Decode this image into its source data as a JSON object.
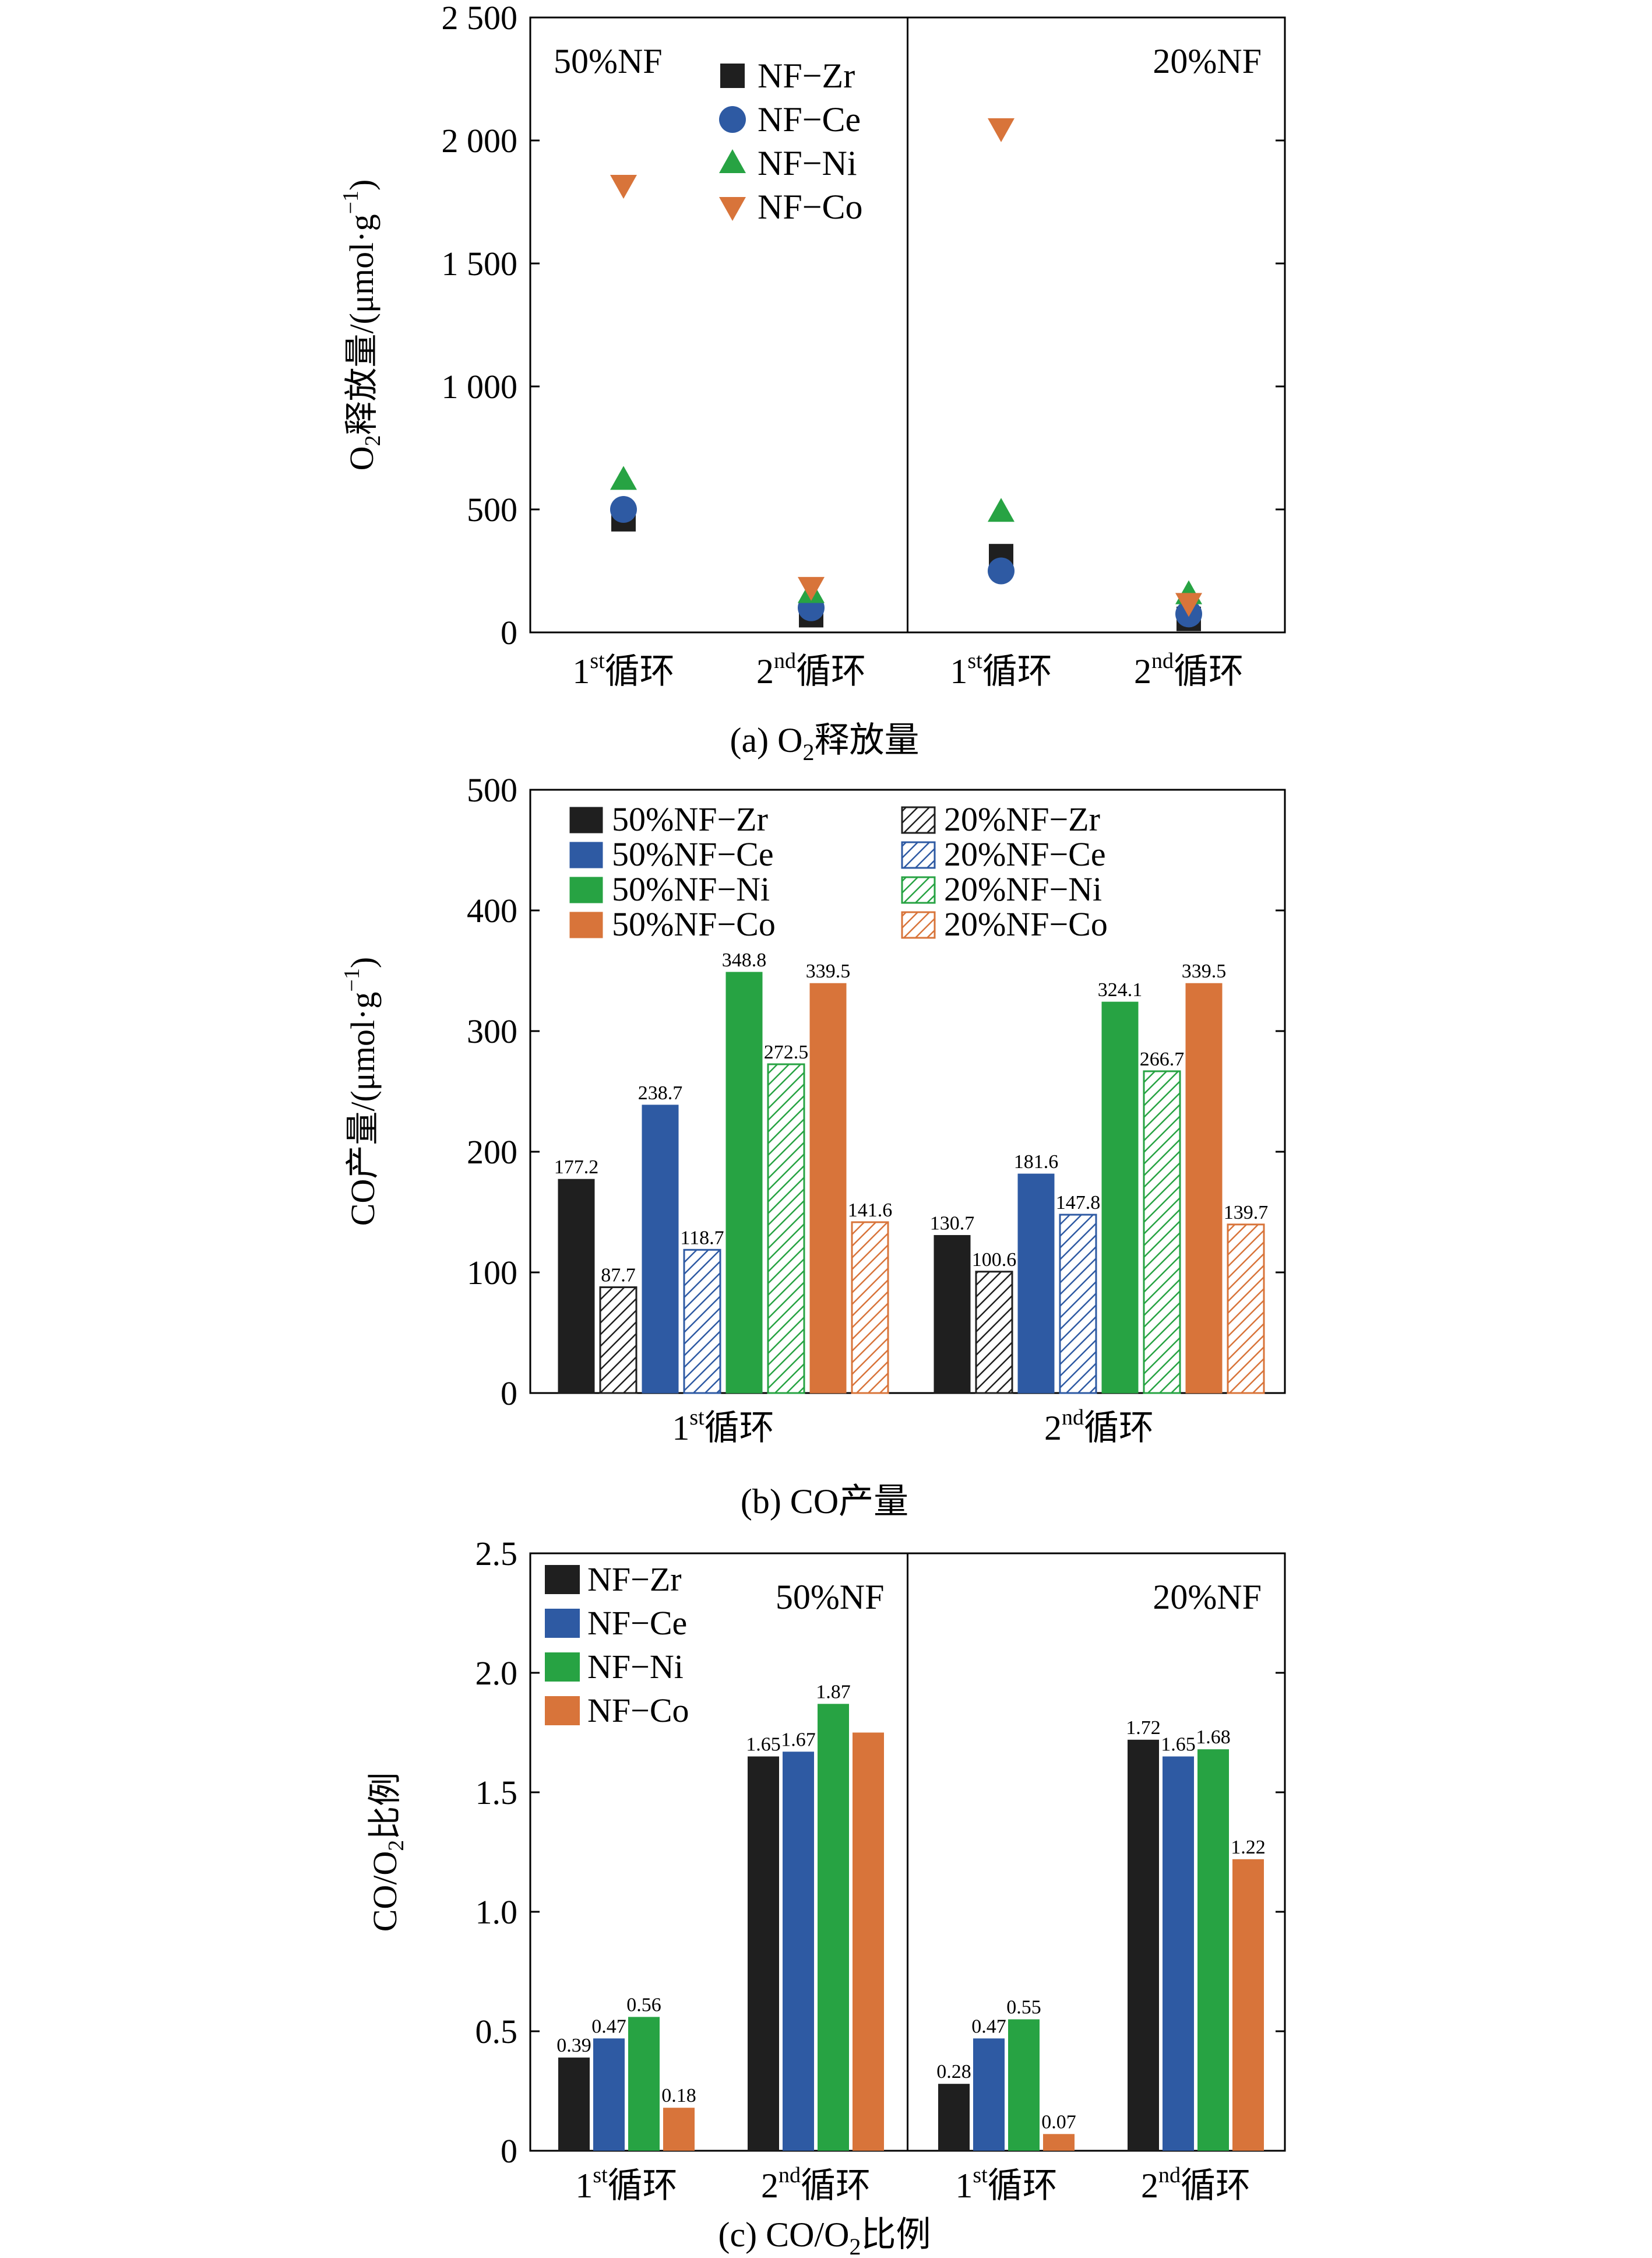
{
  "colors": {
    "zr": "#1f1f1f",
    "ce": "#2e5aa3",
    "ni": "#27a343",
    "co": "#d8743a",
    "axis": "#000000"
  },
  "chart_data": [
    {
      "id": "a",
      "type": "scatter",
      "caption_parts": [
        "(a) O",
        "2",
        "释放量"
      ],
      "ylabel_parts": [
        "O",
        "2",
        "释放量/(μmol·g",
        "−1",
        ")"
      ],
      "ylim": [
        0,
        2500
      ],
      "yticks": [
        0,
        500,
        1000,
        1500,
        2000,
        2500
      ],
      "ytick_labels": [
        "0",
        "500",
        "1 000",
        "1 500",
        "2 000",
        "2 500"
      ],
      "panels": [
        "50%NF",
        "20%NF"
      ],
      "categories": [
        {
          "num": "1",
          "sup": "st",
          "text": "循环"
        },
        {
          "num": "2",
          "sup": "nd",
          "text": "循环"
        },
        {
          "num": "1",
          "sup": "st",
          "text": "循环"
        },
        {
          "num": "2",
          "sup": "nd",
          "text": "循环"
        }
      ],
      "series": [
        {
          "name": "NF−Zr",
          "marker": "square",
          "color": "#1f1f1f",
          "values": [
            460,
            70,
            310,
            55
          ]
        },
        {
          "name": "NF−Ce",
          "marker": "circle",
          "color": "#2e5aa3",
          "values": [
            500,
            100,
            250,
            75
          ]
        },
        {
          "name": "NF−Ni",
          "marker": "triangle-up",
          "color": "#27a343",
          "values": [
            620,
            160,
            490,
            155
          ]
        },
        {
          "name": "NF−Co",
          "marker": "triangle-down",
          "color": "#d8743a",
          "values": [
            1820,
            185,
            2050,
            120
          ]
        }
      ]
    },
    {
      "id": "b",
      "type": "bar",
      "caption_parts": [
        "(b) CO产量"
      ],
      "ylabel_parts": [
        "CO产量/(μmol·g",
        "−1",
        ")"
      ],
      "ylim": [
        0,
        500
      ],
      "yticks": [
        0,
        100,
        200,
        300,
        400,
        500
      ],
      "ytick_labels": [
        "0",
        "100",
        "200",
        "300",
        "400",
        "500"
      ],
      "categories": [
        {
          "num": "1",
          "sup": "st",
          "text": "循环"
        },
        {
          "num": "2",
          "sup": "nd",
          "text": "循环"
        }
      ],
      "series": [
        {
          "name": "50%NF−Zr",
          "color": "#1f1f1f",
          "hatched": false,
          "values": [
            177.2,
            130.7
          ],
          "labels": [
            "177.2",
            "130.7"
          ]
        },
        {
          "name": "20%NF−Zr",
          "color": "#1f1f1f",
          "hatched": true,
          "values": [
            87.7,
            100.6
          ],
          "labels": [
            "87.7",
            "100.6"
          ]
        },
        {
          "name": "50%NF−Ce",
          "color": "#2e5aa3",
          "hatched": false,
          "values": [
            238.7,
            181.6
          ],
          "labels": [
            "238.7",
            "181.6"
          ]
        },
        {
          "name": "20%NF−Ce",
          "color": "#2e5aa3",
          "hatched": true,
          "values": [
            118.7,
            147.8
          ],
          "labels": [
            "118.7",
            "147.8"
          ]
        },
        {
          "name": "50%NF−Ni",
          "color": "#27a343",
          "hatched": false,
          "values": [
            348.8,
            324.1
          ],
          "labels": [
            "348.8",
            "324.1"
          ]
        },
        {
          "name": "20%NF−Ni",
          "color": "#27a343",
          "hatched": true,
          "values": [
            272.5,
            266.7
          ],
          "labels": [
            "272.5",
            "266.7"
          ]
        },
        {
          "name": "50%NF−Co",
          "color": "#d8743a",
          "hatched": false,
          "values": [
            339.5,
            339.5
          ],
          "labels": [
            "339.5",
            "339.5"
          ]
        },
        {
          "name": "20%NF−Co",
          "color": "#d8743a",
          "hatched": true,
          "values": [
            141.6,
            139.7
          ],
          "labels": [
            "141.6",
            "139.7"
          ]
        }
      ],
      "legend_order": [
        0,
        2,
        4,
        6,
        1,
        3,
        5,
        7
      ]
    },
    {
      "id": "c",
      "type": "bar",
      "caption_parts": [
        "(c) CO/O",
        "2",
        "比例"
      ],
      "ylabel_parts": [
        "CO/O",
        "2",
        "比例"
      ],
      "ylim": [
        0,
        2.5
      ],
      "yticks": [
        0,
        0.5,
        1.0,
        1.5,
        2.0,
        2.5
      ],
      "ytick_labels": [
        "0",
        "0.5",
        "1.0",
        "1.5",
        "2.0",
        "2.5"
      ],
      "panels": [
        "50%NF",
        "20%NF"
      ],
      "categories": [
        {
          "num": "1",
          "sup": "st",
          "text": "循环"
        },
        {
          "num": "2",
          "sup": "nd",
          "text": "循环"
        },
        {
          "num": "1",
          "sup": "st",
          "text": "循环"
        },
        {
          "num": "2",
          "sup": "nd",
          "text": "循环"
        }
      ],
      "series": [
        {
          "name": "NF−Zr",
          "color": "#1f1f1f",
          "values": [
            0.39,
            1.65,
            0.28,
            1.72
          ],
          "labels": [
            "0.39",
            "1.65",
            "0.28",
            "1.72"
          ]
        },
        {
          "name": "NF−Ce",
          "color": "#2e5aa3",
          "values": [
            0.47,
            1.67,
            0.47,
            1.65
          ],
          "labels": [
            "0.47",
            "1.67",
            "0.47",
            "1.65"
          ]
        },
        {
          "name": "NF−Ni",
          "color": "#27a343",
          "values": [
            0.56,
            1.87,
            0.55,
            1.68
          ],
          "labels": [
            "0.56",
            "1.87",
            "0.55",
            "1.68"
          ]
        },
        {
          "name": "NF−Co",
          "color": "#d8743a",
          "values": [
            0.18,
            1.75,
            0.07,
            1.22
          ],
          "labels": [
            "0.18",
            "",
            "0.07",
            "1.22"
          ]
        }
      ]
    }
  ]
}
